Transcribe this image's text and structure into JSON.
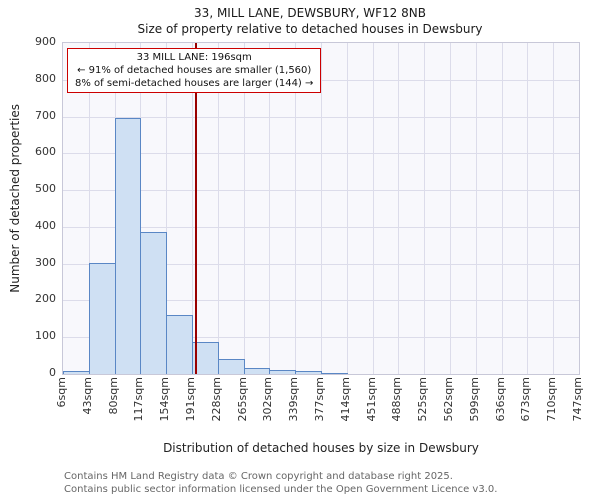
{
  "chart_data": {
    "type": "bar",
    "title": "33, MILL LANE, DEWSBURY, WF12 8NB",
    "subtitle": "Size of property relative to detached houses in Dewsbury",
    "xlabel": "Distribution of detached houses by size in Dewsbury",
    "ylabel": "Number of detached properties",
    "categories": [
      "6sqm",
      "43sqm",
      "80sqm",
      "117sqm",
      "154sqm",
      "191sqm",
      "228sqm",
      "265sqm",
      "302sqm",
      "339sqm",
      "377sqm",
      "414sqm",
      "451sqm",
      "488sqm",
      "525sqm",
      "562sqm",
      "599sqm",
      "636sqm",
      "673sqm",
      "710sqm",
      "747sqm"
    ],
    "values": [
      8,
      303,
      695,
      385,
      160,
      86,
      40,
      15,
      12,
      8,
      3,
      0,
      0,
      0,
      0,
      0,
      0,
      0,
      0,
      0
    ],
    "ylim": [
      0,
      900
    ],
    "yticks": [
      0,
      100,
      200,
      300,
      400,
      500,
      600,
      700,
      800,
      900
    ],
    "x_range_sqm": [
      6,
      747
    ],
    "grid": true,
    "legend": "none",
    "bar_fill": "#cfe0f3",
    "bar_edge": "#5a87c5",
    "marker": {
      "value_sqm": 196,
      "color": "#990000"
    },
    "annotation": {
      "line1": "33 MILL LANE: 196sqm",
      "line2": "← 91% of detached houses are smaller (1,560)",
      "line3": "8% of semi-detached houses are larger (144) →"
    }
  },
  "footer": {
    "line1": "Contains HM Land Registry data © Crown copyright and database right 2025.",
    "line2": "Contains public sector information licensed under the Open Government Licence v3.0."
  }
}
